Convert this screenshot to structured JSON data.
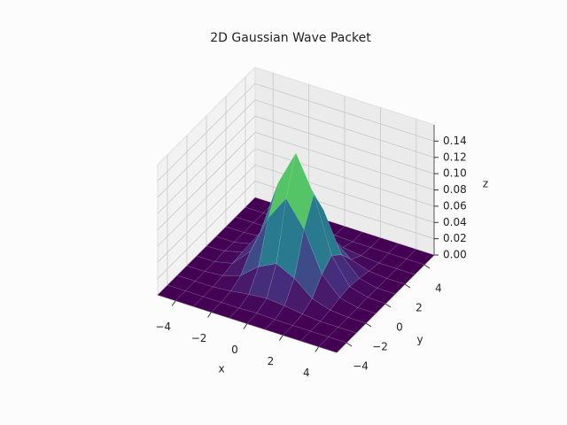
{
  "chart_data": {
    "type": "surface",
    "title": "2D Gaussian Wave Packet",
    "xlabel": "x",
    "ylabel": "y",
    "zlabel": "z",
    "colormap": "viridis",
    "x": [
      -5,
      -4,
      -3,
      -2,
      -1,
      0,
      1,
      2,
      3,
      4,
      5
    ],
    "y": [
      -5,
      -4,
      -3,
      -2,
      -1,
      0,
      1,
      2,
      3,
      4,
      5
    ],
    "z": [
      [
        0,
        0,
        0,
        0,
        0,
        0,
        0,
        0,
        0,
        0,
        0
      ],
      [
        0,
        0,
        0,
        0,
        0,
        0.001,
        0,
        0,
        0,
        0,
        0
      ],
      [
        0,
        0,
        0,
        0.002,
        0.005,
        0.007,
        0.005,
        0.002,
        0,
        0,
        0
      ],
      [
        0,
        0,
        0.002,
        0.009,
        0.027,
        0.038,
        0.027,
        0.009,
        0.002,
        0,
        0
      ],
      [
        0,
        0,
        0.005,
        0.027,
        0.075,
        0.106,
        0.075,
        0.027,
        0.005,
        0,
        0
      ],
      [
        0,
        0.001,
        0.007,
        0.038,
        0.106,
        0.15,
        0.106,
        0.038,
        0.007,
        0.001,
        0
      ],
      [
        0,
        0,
        0.005,
        0.027,
        0.075,
        0.106,
        0.075,
        0.027,
        0.005,
        0,
        0
      ],
      [
        0,
        0,
        0.002,
        0.009,
        0.027,
        0.038,
        0.027,
        0.009,
        0.002,
        0,
        0
      ],
      [
        0,
        0,
        0,
        0.002,
        0.005,
        0.007,
        0.005,
        0.002,
        0,
        0,
        0
      ],
      [
        0,
        0,
        0,
        0,
        0,
        0.001,
        0,
        0,
        0,
        0,
        0
      ],
      [
        0,
        0,
        0,
        0,
        0,
        0,
        0,
        0,
        0,
        0,
        0
      ]
    ],
    "xlim": [
      -5,
      5
    ],
    "ylim": [
      -5,
      5
    ],
    "zlim": [
      0,
      0.16
    ],
    "xticks": [
      {
        "value": -4,
        "label": "−4"
      },
      {
        "value": -2,
        "label": "−2"
      },
      0,
      2,
      4
    ],
    "yticks": [
      {
        "value": -4,
        "label": "−4"
      },
      {
        "value": -2,
        "label": "−2"
      },
      0,
      2,
      4
    ],
    "zticks": [
      {
        "value": 0,
        "label": "0.00"
      },
      {
        "value": 0.02,
        "label": "0.02"
      },
      {
        "value": 0.04,
        "label": "0.04"
      },
      {
        "value": 0.06,
        "label": "0.06"
      },
      {
        "value": 0.08,
        "label": "0.08"
      },
      {
        "value": 0.1,
        "label": "0.10"
      },
      {
        "value": 0.12,
        "label": "0.12"
      },
      {
        "value": 0.14,
        "label": "0.14"
      }
    ],
    "grid": true
  }
}
